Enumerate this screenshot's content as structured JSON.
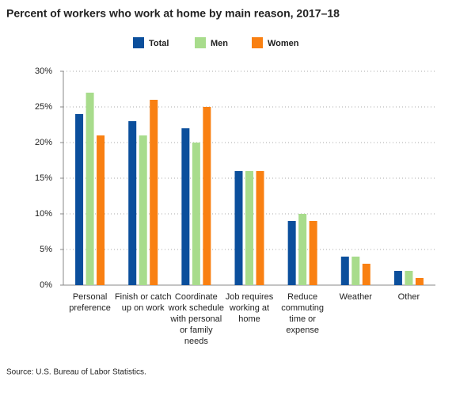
{
  "chart_data": {
    "type": "bar",
    "title": "Percent of workers who work at home by main reason, 2017–18",
    "categories": [
      "Personal preference",
      "Finish or catch up on work",
      "Coordinate work schedule with personal or family needs",
      "Job requires working at home",
      "Reduce commuting time or expense",
      "Weather",
      "Other"
    ],
    "series": [
      {
        "name": "Total",
        "color": "#0b4f9c",
        "values": [
          24,
          23,
          22,
          16,
          9,
          4,
          2
        ]
      },
      {
        "name": "Men",
        "color": "#a8dc8c",
        "values": [
          27,
          21,
          20,
          16,
          10,
          4,
          2
        ]
      },
      {
        "name": "Women",
        "color": "#f98012",
        "values": [
          21,
          26,
          25,
          16,
          9,
          3,
          1
        ]
      }
    ],
    "ylim": [
      0,
      30
    ],
    "yticks": [
      {
        "value": 0,
        "label": "0%"
      },
      {
        "value": 5,
        "label": "5%"
      },
      {
        "value": 10,
        "label": "10%"
      },
      {
        "value": 15,
        "label": "15%"
      },
      {
        "value": 20,
        "label": "20%"
      },
      {
        "value": 25,
        "label": "25%"
      },
      {
        "value": 30,
        "label": "30%"
      }
    ],
    "grid": true,
    "legend": "top",
    "source": "Source: U.S. Bureau of Labor Statistics."
  }
}
